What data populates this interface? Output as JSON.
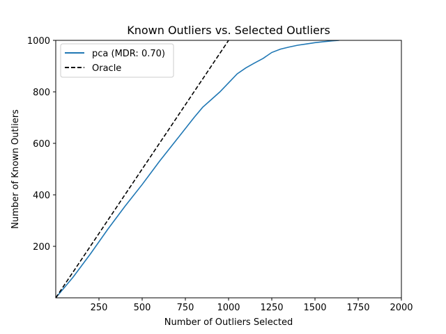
{
  "chart_data": {
    "type": "line",
    "title": "Known Outliers vs. Selected Outliers",
    "xlabel": "Number of Outliers Selected",
    "ylabel": "Number of Known Outliers",
    "xlim": [
      0,
      2000
    ],
    "ylim": [
      0,
      1000
    ],
    "xticks": [
      250,
      500,
      750,
      1000,
      1250,
      1500,
      1750,
      2000
    ],
    "yticks": [
      200,
      400,
      600,
      800,
      1000
    ],
    "grid": false,
    "legend_position": "top-left",
    "series": [
      {
        "name": "pca (MDR: 0.70)",
        "color": "#1f77b4",
        "style": "solid",
        "x": [
          0,
          100,
          200,
          300,
          400,
          500,
          600,
          700,
          800,
          850,
          900,
          950,
          1000,
          1050,
          1100,
          1150,
          1200,
          1250,
          1300,
          1350,
          1400,
          1450,
          1500,
          1550,
          1600,
          1640
        ],
        "y": [
          0,
          80,
          170,
          265,
          355,
          440,
          530,
          615,
          700,
          740,
          770,
          800,
          835,
          870,
          893,
          912,
          930,
          953,
          966,
          974,
          981,
          986,
          991,
          995,
          998,
          1000
        ]
      },
      {
        "name": "Oracle",
        "color": "#000000",
        "style": "dashed",
        "x": [
          0,
          1000
        ],
        "y": [
          0,
          1000
        ]
      }
    ]
  }
}
